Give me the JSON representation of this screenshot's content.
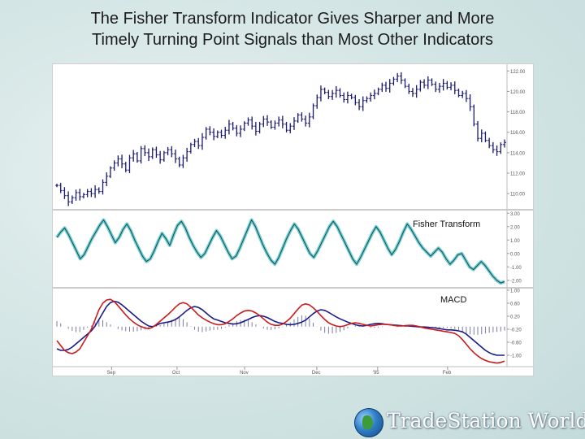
{
  "title": {
    "line1": "The Fisher Transform Indicator Gives Sharper and More",
    "line2": "Timely Turning Point  Signals than Most Other Indicators"
  },
  "logo": {
    "text": "TradeStation World",
    "icon": "globe-icon"
  },
  "colors": {
    "price_bars": "#1a1a6e",
    "fisher_outer": "#6fd0d3",
    "fisher_inner": "#1b4b52",
    "macd_line": "#1a1a8a",
    "signal_line": "#cc1a1a",
    "histogram": "#7a7aa6"
  },
  "chart_data": [
    {
      "type": "bar",
      "subtype": "ohlc",
      "panel": "price",
      "title": "",
      "y_ticks": [
        "122.00",
        "120.00",
        "118.00",
        "116.00",
        "114.00",
        "112.00",
        "110.00"
      ],
      "ylim": [
        108.5,
        122.5
      ],
      "x_ticks": [
        "Sep",
        "Oct",
        "Nov",
        "Dec",
        "'95",
        "Feb"
      ],
      "values": [
        110.8,
        110.3,
        109.8,
        109.2,
        109.6,
        110.1,
        109.7,
        109.9,
        110.2,
        110.0,
        110.4,
        110.2,
        111.1,
        111.7,
        112.5,
        113.0,
        113.4,
        112.9,
        112.3,
        113.5,
        113.9,
        113.2,
        114.4,
        114.0,
        113.6,
        114.3,
        113.8,
        113.3,
        114.0,
        114.3,
        113.9,
        113.4,
        112.8,
        113.5,
        114.1,
        114.8,
        115.1,
        114.7,
        115.5,
        116.3,
        116.0,
        115.6,
        116.0,
        115.7,
        116.2,
        116.8,
        116.4,
        115.9,
        116.3,
        116.9,
        117.2,
        116.6,
        116.1,
        116.8,
        117.3,
        117.0,
        116.5,
        116.9,
        117.2,
        116.8,
        116.2,
        116.6,
        117.1,
        117.7,
        117.3,
        116.9,
        117.5,
        118.6,
        119.4,
        120.2,
        119.9,
        119.5,
        119.8,
        120.1,
        119.6,
        119.2,
        119.6,
        119.4,
        118.9,
        118.5,
        119.1,
        119.3,
        119.6,
        119.8,
        120.2,
        120.6,
        120.3,
        120.8,
        121.2,
        121.5,
        121.1,
        120.5,
        120.0,
        119.8,
        120.2,
        120.9,
        120.6,
        121.1,
        120.7,
        120.2,
        120.5,
        120.8,
        120.4,
        120.6,
        120.1,
        119.6,
        119.8,
        119.3,
        118.5,
        116.8,
        115.4,
        115.9,
        115.2,
        114.7,
        114.3,
        114.1,
        114.8,
        115.0
      ]
    },
    {
      "type": "line",
      "panel": "fisher",
      "title": "",
      "annotation": "Fisher Transform",
      "y_ticks": [
        "3.00",
        "2.00",
        "1.00",
        "0.00",
        "-1.00",
        "-2.00"
      ],
      "ylim": [
        -2.5,
        3.2
      ],
      "series": [
        {
          "values": [
            1.2,
            1.6,
            1.9,
            1.4,
            0.8,
            0.2,
            -0.4,
            -0.1,
            0.5,
            1.1,
            1.6,
            2.1,
            2.5,
            2.0,
            1.4,
            0.8,
            1.2,
            1.8,
            2.2,
            1.7,
            1.0,
            0.4,
            -0.2,
            -0.6,
            -0.4,
            0.2,
            0.9,
            1.5,
            1.1,
            0.6,
            1.4,
            2.1,
            2.4,
            1.9,
            1.2,
            0.6,
            0.1,
            -0.3,
            0.0,
            0.6,
            1.2,
            1.7,
            1.3,
            0.7,
            0.1,
            -0.4,
            -0.2,
            0.4,
            1.1,
            1.8,
            2.5,
            2.0,
            1.3,
            0.6,
            0.0,
            -0.5,
            -0.8,
            -0.3,
            0.4,
            1.1,
            1.7,
            2.2,
            1.8,
            1.2,
            0.6,
            0.0,
            -0.3,
            0.2,
            0.8,
            1.4,
            2.0,
            2.4,
            2.0,
            1.4,
            0.8,
            0.2,
            -0.4,
            -0.8,
            -0.3,
            0.3,
            0.9,
            1.5,
            2.0,
            1.6,
            1.0,
            0.4,
            -0.1,
            0.3,
            0.9,
            1.6,
            2.2,
            1.8,
            1.3,
            0.8,
            0.4,
            0.1,
            -0.2,
            0.1,
            0.4,
            0.1,
            -0.4,
            -0.8,
            -0.5,
            -0.1,
            0.0,
            -0.5,
            -1.0,
            -1.2,
            -0.9,
            -0.6,
            -0.9,
            -1.3,
            -1.7,
            -2.0,
            -2.2,
            -2.1
          ]
        }
      ]
    },
    {
      "type": "line",
      "panel": "macd",
      "title": "",
      "annotation": "MACD",
      "y_ticks": [
        "1.00",
        "0.60",
        "0.20",
        "-0.20",
        "-0.60",
        "-1.00"
      ],
      "ylim": [
        -1.3,
        1.05
      ],
      "series": [
        {
          "values": [
            -0.8,
            -0.85,
            -0.85,
            -0.82,
            -0.75,
            -0.65,
            -0.55,
            -0.45,
            -0.35,
            -0.25,
            -0.1,
            0.1,
            0.3,
            0.5,
            0.62,
            0.66,
            0.63,
            0.55,
            0.45,
            0.35,
            0.25,
            0.15,
            0.05,
            -0.03,
            -0.1,
            -0.12,
            -0.08,
            -0.02,
            0.0,
            0.02,
            0.05,
            0.1,
            0.18,
            0.28,
            0.38,
            0.46,
            0.5,
            0.47,
            0.4,
            0.3,
            0.2,
            0.12,
            0.08,
            0.04,
            0.0,
            -0.02,
            -0.04,
            -0.03,
            0.0,
            0.05,
            0.1,
            0.16,
            0.2,
            0.22,
            0.2,
            0.16,
            0.1,
            0.04,
            0.0,
            -0.02,
            -0.05,
            -0.06,
            -0.05,
            -0.02,
            0.02,
            0.08,
            0.18,
            0.28,
            0.36,
            0.4,
            0.38,
            0.32,
            0.25,
            0.18,
            0.12,
            0.07,
            0.02,
            -0.02,
            -0.06,
            -0.09,
            -0.1,
            -0.08,
            -0.05,
            -0.03,
            -0.02,
            -0.03,
            -0.05,
            -0.06,
            -0.07,
            -0.08,
            -0.09,
            -0.1,
            -0.1,
            -0.11,
            -0.12,
            -0.13,
            -0.13,
            -0.14,
            -0.15,
            -0.16,
            -0.18,
            -0.2,
            -0.22,
            -0.22,
            -0.23,
            -0.25,
            -0.28,
            -0.35,
            -0.45,
            -0.55,
            -0.65,
            -0.75,
            -0.85,
            -0.92,
            -0.97,
            -1.0,
            -1.0,
            -1.0
          ]
        },
        {
          "values": [
            -0.55,
            -0.7,
            -0.85,
            -0.92,
            -0.95,
            -0.9,
            -0.8,
            -0.6,
            -0.4,
            -0.2,
            0.1,
            0.4,
            0.6,
            0.7,
            0.72,
            0.65,
            0.52,
            0.38,
            0.24,
            0.12,
            0.02,
            -0.06,
            -0.12,
            -0.16,
            -0.18,
            -0.14,
            -0.05,
            0.05,
            0.15,
            0.25,
            0.36,
            0.48,
            0.58,
            0.62,
            0.58,
            0.48,
            0.36,
            0.24,
            0.15,
            0.08,
            0.02,
            -0.03,
            -0.06,
            -0.06,
            -0.03,
            0.04,
            0.12,
            0.22,
            0.3,
            0.36,
            0.38,
            0.36,
            0.3,
            0.22,
            0.12,
            0.02,
            -0.05,
            -0.08,
            -0.08,
            -0.04,
            0.04,
            0.14,
            0.28,
            0.42,
            0.54,
            0.58,
            0.55,
            0.46,
            0.35,
            0.22,
            0.1,
            0.0,
            -0.06,
            -0.1,
            -0.12,
            -0.1,
            -0.06,
            -0.02,
            0.0,
            -0.02,
            -0.05,
            -0.08,
            -0.1,
            -0.08,
            -0.06,
            -0.05,
            -0.05,
            -0.06,
            -0.08,
            -0.1,
            -0.1,
            -0.09,
            -0.08,
            -0.08,
            -0.1,
            -0.13,
            -0.16,
            -0.18,
            -0.2,
            -0.22,
            -0.24,
            -0.26,
            -0.28,
            -0.3,
            -0.33,
            -0.4,
            -0.52,
            -0.66,
            -0.8,
            -0.92,
            -1.02,
            -1.1,
            -1.16,
            -1.2,
            -1.22,
            -1.24,
            -1.22,
            -1.18
          ]
        }
      ]
    }
  ]
}
